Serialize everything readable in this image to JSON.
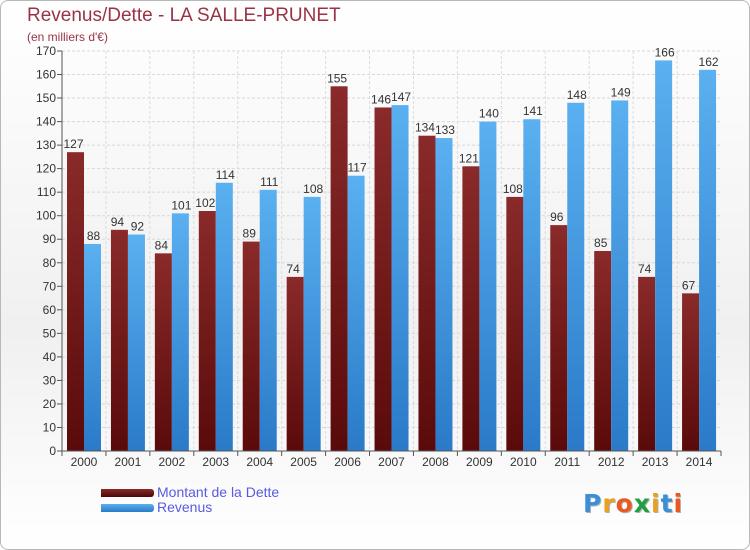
{
  "chart_data": {
    "type": "bar",
    "title": "Revenus/Dette - LA SALLE-PRUNET",
    "subtitle": "(en milliers d'€)",
    "categories": [
      "2000",
      "2001",
      "2002",
      "2003",
      "2004",
      "2005",
      "2006",
      "2007",
      "2008",
      "2009",
      "2010",
      "2011",
      "2012",
      "2013",
      "2014"
    ],
    "series": [
      {
        "name": "Montant de la Dette",
        "color": "#7a1c1c",
        "values": [
          127,
          94,
          84,
          102,
          89,
          74,
          155,
          146,
          134,
          121,
          108,
          96,
          85,
          74,
          67
        ]
      },
      {
        "name": "Revenus",
        "color": "#4aa3e6",
        "values": [
          88,
          92,
          101,
          114,
          111,
          108,
          117,
          147,
          133,
          140,
          141,
          148,
          149,
          166,
          162
        ]
      }
    ],
    "ylim": [
      0,
      170
    ],
    "ytick_step": 10,
    "grid": true,
    "legend": "bottom-left"
  },
  "branding": {
    "logo_letters": [
      "P",
      "r",
      "o",
      "x",
      "i",
      "t",
      "i"
    ],
    "logo_colors": [
      "#3a8fd8",
      "#e8a020",
      "#e85a20",
      "#20a040",
      "#e8a020",
      "#3a8fd8",
      "#e85a20"
    ]
  }
}
